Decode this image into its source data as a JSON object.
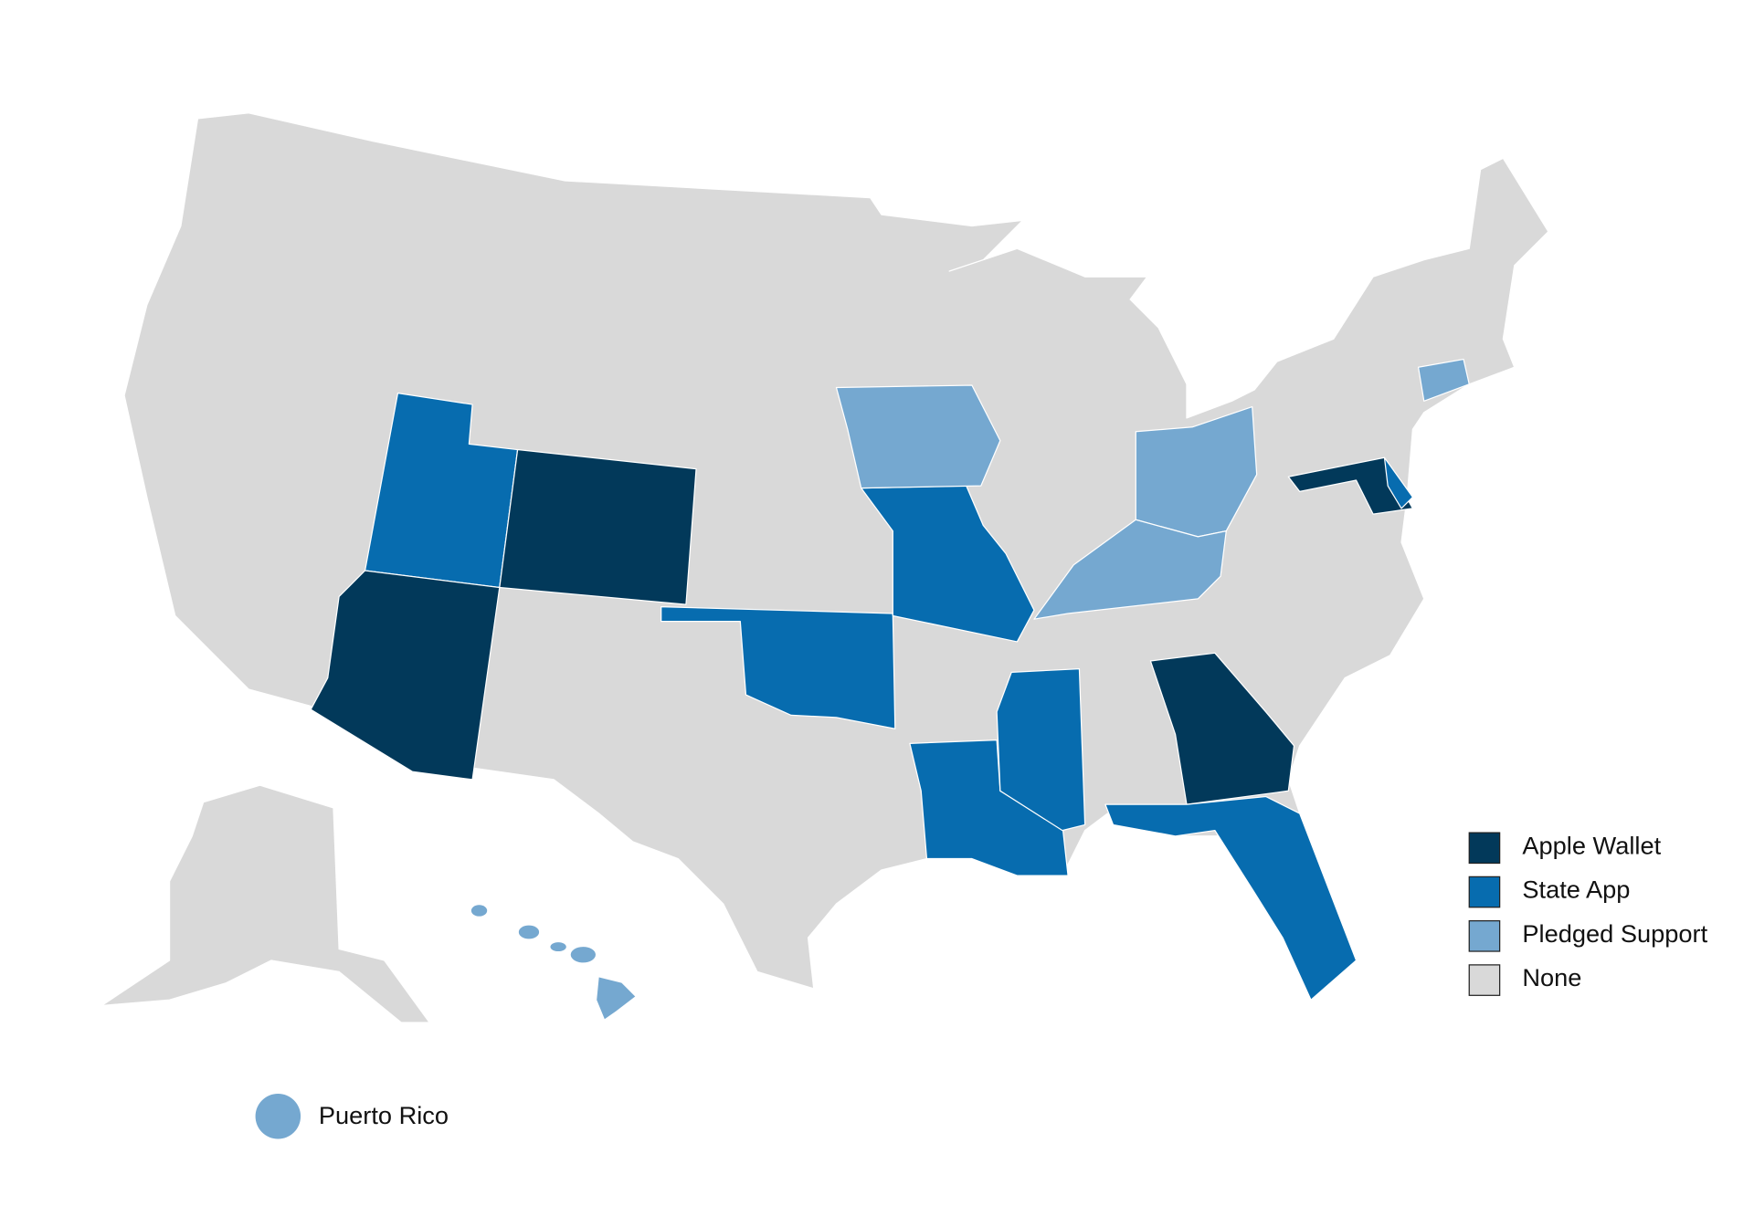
{
  "legend": {
    "items": [
      {
        "label": "Apple Wallet",
        "color": "#02395a"
      },
      {
        "label": "State App",
        "color": "#076caf"
      },
      {
        "label": "Pledged Support",
        "color": "#75a8d0"
      },
      {
        "label": "None",
        "color": "#d9d9d9"
      }
    ]
  },
  "inset": {
    "label": "Puerto Rico",
    "color": "#75a8d0"
  }
}
